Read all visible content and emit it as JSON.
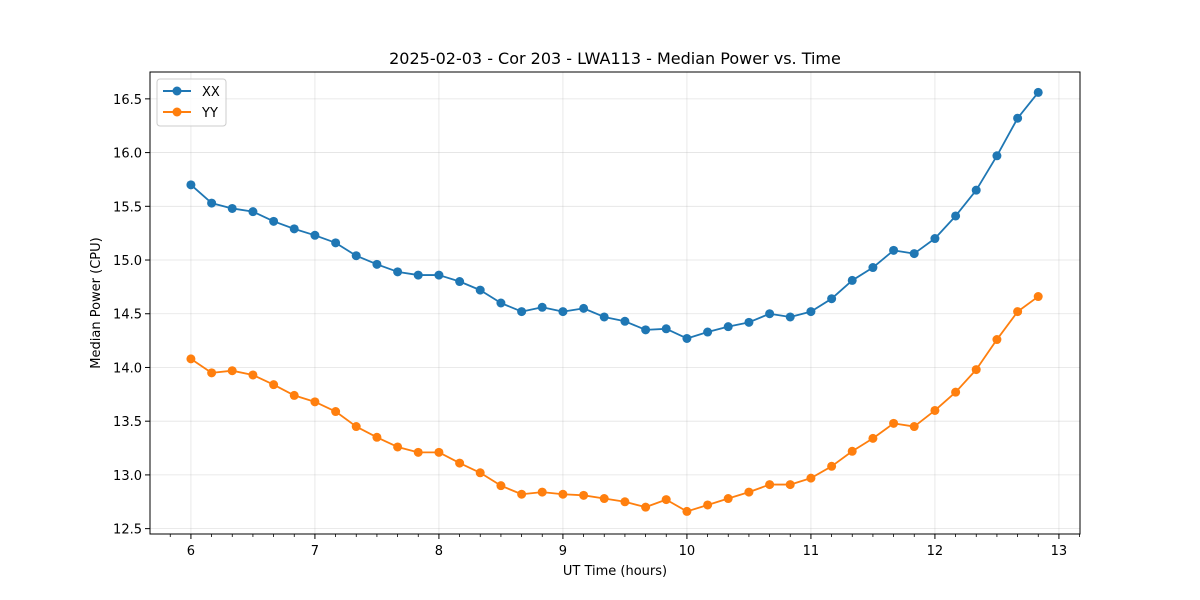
{
  "chart_data": {
    "type": "line",
    "title": "2025-02-03 - Cor 203 - LWA113 - Median Power vs. Time",
    "xlabel": "UT Time (hours)",
    "ylabel": "Median Power (CPU)",
    "xlim": [
      5.67,
      13.17
    ],
    "ylim": [
      12.45,
      16.75
    ],
    "grid": true,
    "legend_position": "top-left",
    "xticks": [
      6,
      7,
      8,
      9,
      10,
      11,
      12,
      13
    ],
    "yticks": [
      12.5,
      13.0,
      13.5,
      14.0,
      14.5,
      15.0,
      15.5,
      16.0,
      16.5
    ],
    "x": [
      6.0,
      6.167,
      6.333,
      6.5,
      6.667,
      6.833,
      7.0,
      7.167,
      7.333,
      7.5,
      7.667,
      7.833,
      8.0,
      8.167,
      8.333,
      8.5,
      8.667,
      8.833,
      9.0,
      9.167,
      9.333,
      9.5,
      9.667,
      9.833,
      10.0,
      10.167,
      10.333,
      10.5,
      10.667,
      10.833,
      11.0,
      11.167,
      11.333,
      11.5,
      11.667,
      11.833,
      12.0,
      12.167,
      12.333,
      12.5,
      12.667,
      12.833
    ],
    "series": [
      {
        "name": "XX",
        "color": "#1f77b4",
        "values": [
          15.7,
          15.53,
          15.48,
          15.45,
          15.36,
          15.29,
          15.23,
          15.16,
          15.04,
          14.96,
          14.89,
          14.86,
          14.86,
          14.8,
          14.72,
          14.6,
          14.52,
          14.56,
          14.52,
          14.55,
          14.47,
          14.43,
          14.35,
          14.36,
          14.27,
          14.33,
          14.38,
          14.42,
          14.5,
          14.47,
          14.52,
          14.64,
          14.81,
          14.93,
          15.09,
          15.06,
          15.2,
          15.41,
          15.65,
          15.97,
          16.32,
          16.56
        ]
      },
      {
        "name": "YY",
        "color": "#ff7f0e",
        "values": [
          14.08,
          13.95,
          13.97,
          13.93,
          13.84,
          13.74,
          13.68,
          13.59,
          13.45,
          13.35,
          13.26,
          13.21,
          13.21,
          13.11,
          13.02,
          12.9,
          12.82,
          12.84,
          12.82,
          12.81,
          12.78,
          12.75,
          12.7,
          12.77,
          12.66,
          12.72,
          12.78,
          12.84,
          12.91,
          12.91,
          12.97,
          13.08,
          13.22,
          13.34,
          13.48,
          13.45,
          13.6,
          13.77,
          13.98,
          14.26,
          14.52,
          14.66
        ]
      }
    ]
  }
}
